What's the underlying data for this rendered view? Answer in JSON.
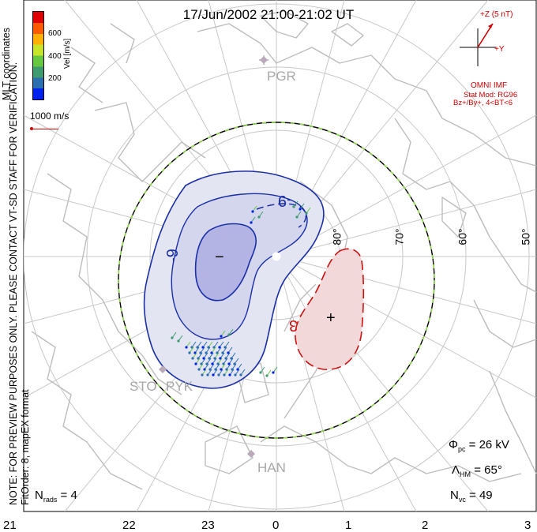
{
  "header": {
    "title": "17/Jun/2002 21:00-21:02 UT"
  },
  "side_note": {
    "line1": "NOTE: FOR PREVIEW PURPOSES ONLY. PLEASE CONTACT VT-SD STAFF FOR VERIFICATION.",
    "line2": "FitOrder: 8, mapEX format"
  },
  "velocity_scale": {
    "label": "Vel [m/s]",
    "ticks": [
      "600",
      "400",
      "200"
    ],
    "colors": [
      "#0022ee",
      "#2c6fb0",
      "#3d9b6e",
      "#66c840",
      "#c7e428",
      "#ffb000",
      "#ff5a00",
      "#e00000"
    ],
    "reference_vector_label": "1000 m/s",
    "coordinates_label": "MLT coordinates"
  },
  "imf": {
    "z_label": "+Z (5 nT)",
    "y_label": "+Y",
    "name": "OMNI IMF",
    "stat_model_line1": "Stat Mod: RG96",
    "stat_model_line2": "Bz+/By+, 4<BT<6",
    "color": "#d00000"
  },
  "latitude_labels": [
    "80°",
    "70°",
    "60°",
    "50°"
  ],
  "contour_labels": {
    "negative": "-9",
    "negative_secondary": "-9",
    "positive": "3",
    "minimum_marker": "−",
    "maximum_marker": "+"
  },
  "stations": [
    "PGR",
    "STO",
    "PYK",
    "HAN"
  ],
  "statistics": {
    "phi_pc_symbol": "Φ",
    "phi_pc_sub": "pc",
    "phi_pc_value": "=  26 kV",
    "lambda_hm_symbol": "Λ",
    "lambda_hm_sub": "HM",
    "lambda_hm_value": "=  65°",
    "n_vc_symbol": "N",
    "n_vc_sub": "vc",
    "n_vc_value": "=  49",
    "n_rads_symbol": "N",
    "n_rads_sub": "rads",
    "n_rads_value": "=  4"
  },
  "mlt_axis": [
    "21",
    "22",
    "23",
    "0",
    "1",
    "2",
    "3"
  ],
  "colors": {
    "negative_fill": "#e3e5f3",
    "negative_inner_fill": "#b4b4e4",
    "negative_line": "#1a2fa8",
    "positive_fill": "#f2d8d8",
    "positive_line": "#cc1111",
    "coastline": "#bdbdbd",
    "grid": "#c8c8c8",
    "boundary_dash": "#8fe040"
  }
}
